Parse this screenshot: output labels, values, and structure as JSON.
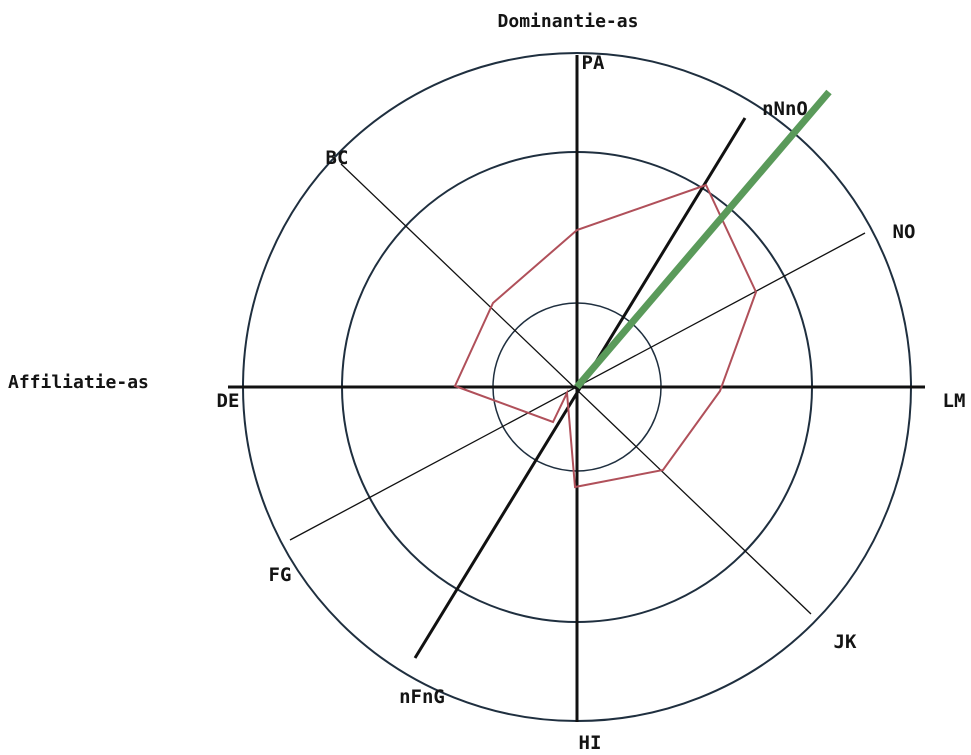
{
  "titles": {
    "vertical_axis": "Dominantie-as",
    "horizontal_axis": "Affiliatie-as"
  },
  "octant_labels": {
    "PA": "PA",
    "BC": "BC",
    "DE": "DE",
    "FG": "FG",
    "HI": "HI",
    "JK": "JK",
    "LM": "LM",
    "NO": "NO"
  },
  "axis_labels": {
    "nNnO": "nNnO",
    "nFnG": "nFnG"
  },
  "colors": {
    "axis": "#111111",
    "circle": "#1f2f3f",
    "profile": "#b0505a",
    "vector": "#5a9a5a"
  },
  "chart_data": {
    "type": "radar",
    "rings": 3,
    "octants": [
      "PA",
      "BC",
      "DE",
      "FG",
      "HI",
      "JK",
      "LM",
      "NO"
    ],
    "octant_angles_deg": [
      90,
      135,
      180,
      225,
      270,
      315,
      0,
      30
    ],
    "profile": [
      {
        "angle_deg": 90,
        "radius": 1.16
      },
      {
        "angle_deg": 120,
        "radius": 1.0
      },
      {
        "angle_deg": 150,
        "radius": 1.1
      },
      {
        "angle_deg": 180,
        "radius": 0.95
      },
      {
        "angle_deg": 200,
        "radius": 0.28
      },
      {
        "angle_deg": 230,
        "radius": 0.3
      },
      {
        "angle_deg": 270,
        "radius": 0.78
      },
      {
        "angle_deg": 315,
        "radius": 0.95
      },
      {
        "angle_deg": 0,
        "radius": 1.15
      },
      {
        "angle_deg": 30,
        "radius": 1.7
      },
      {
        "angle_deg": 60,
        "radius": 1.85
      }
    ],
    "vector": {
      "angle_deg": 52,
      "radius": 3.2
    }
  }
}
